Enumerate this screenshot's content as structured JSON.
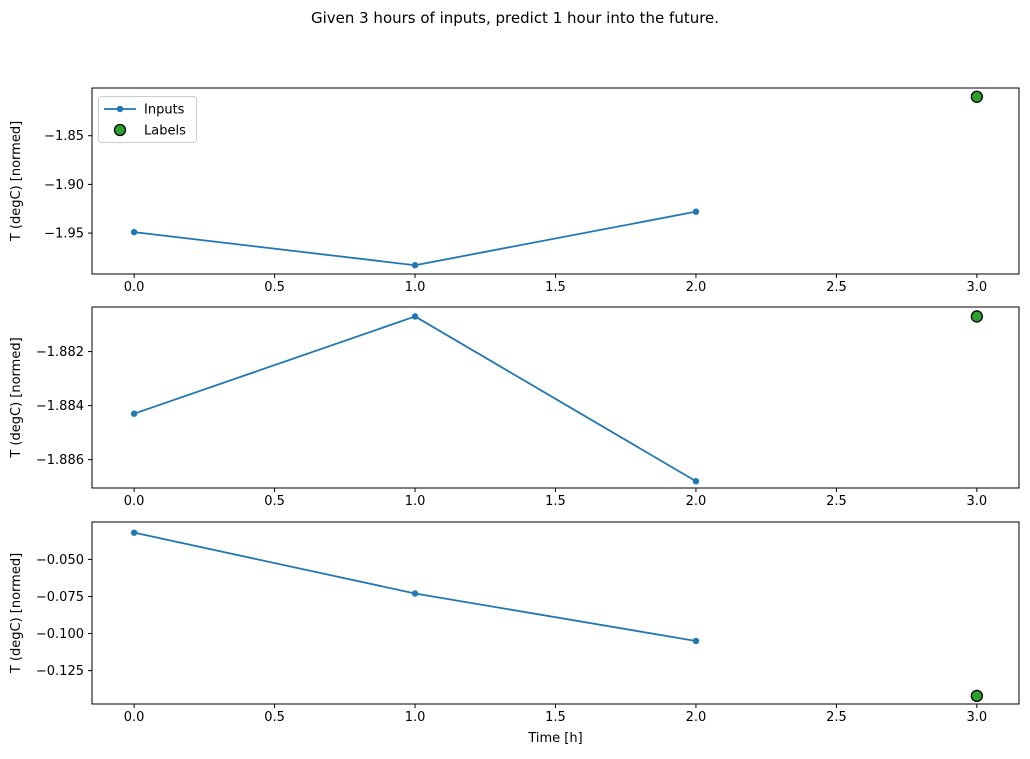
{
  "figure": {
    "title": "Given 3 hours of inputs, predict 1 hour into the future.",
    "xlabel": "Time [h]",
    "ylabel": "T (degC) [normed]"
  },
  "colors": {
    "inputs_line": "#1f77b4",
    "labels_fill": "#2ca02c",
    "labels_edge": "#000000",
    "axis": "#000000",
    "tick_text": "#000000",
    "legend_border": "#cccccc",
    "background": "#ffffff"
  },
  "legend": {
    "position": "upper-left",
    "items": [
      {
        "label": "Inputs",
        "marker": "line-dot",
        "color": "#1f77b4"
      },
      {
        "label": "Labels",
        "marker": "circle",
        "color": "#2ca02c"
      }
    ]
  },
  "chart_data": [
    {
      "type": "line",
      "title": "",
      "xlabel": "",
      "ylabel": "T (degC) [normed]",
      "xlim": [
        -0.15,
        3.15
      ],
      "ylim": [
        -1.992,
        -1.801
      ],
      "x_tick_values": [
        0.0,
        0.5,
        1.0,
        1.5,
        2.0,
        2.5,
        3.0
      ],
      "x_tick_labels": [
        "0.0",
        "0.5",
        "1.0",
        "1.5",
        "2.0",
        "2.5",
        "3.0"
      ],
      "y_tick_values": [
        -1.85,
        -1.9,
        -1.95
      ],
      "y_tick_labels": [
        "−1.85",
        "−1.90",
        "−1.95"
      ],
      "series": [
        {
          "name": "Inputs",
          "kind": "line+marker",
          "x": [
            0,
            1,
            2
          ],
          "y": [
            -1.949,
            -1.983,
            -1.928
          ]
        },
        {
          "name": "Labels",
          "kind": "scatter",
          "x": [
            3
          ],
          "y": [
            -1.81
          ]
        }
      ],
      "show_legend": true,
      "grid": false
    },
    {
      "type": "line",
      "title": "",
      "xlabel": "",
      "ylabel": "T (degC) [normed]",
      "xlim": [
        -0.15,
        3.15
      ],
      "ylim": [
        -1.88705,
        -1.88035
      ],
      "x_tick_values": [
        0.0,
        0.5,
        1.0,
        1.5,
        2.0,
        2.5,
        3.0
      ],
      "x_tick_labels": [
        "0.0",
        "0.5",
        "1.0",
        "1.5",
        "2.0",
        "2.5",
        "3.0"
      ],
      "y_tick_values": [
        -1.882,
        -1.884,
        -1.886
      ],
      "y_tick_labels": [
        "−1.882",
        "−1.884",
        "−1.886"
      ],
      "series": [
        {
          "name": "Inputs",
          "kind": "line+marker",
          "x": [
            0,
            1,
            2
          ],
          "y": [
            -1.8843,
            -1.8807,
            -1.8868
          ]
        },
        {
          "name": "Labels",
          "kind": "scatter",
          "x": [
            3
          ],
          "y": [
            -1.8807
          ]
        }
      ],
      "show_legend": false,
      "grid": false
    },
    {
      "type": "line",
      "title": "",
      "xlabel": "Time [h]",
      "ylabel": "T (degC) [normed]",
      "xlim": [
        -0.15,
        3.15
      ],
      "ylim": [
        -0.1475,
        -0.0248
      ],
      "x_tick_values": [
        0.0,
        0.5,
        1.0,
        1.5,
        2.0,
        2.5,
        3.0
      ],
      "x_tick_labels": [
        "0.0",
        "0.5",
        "1.0",
        "1.5",
        "2.0",
        "2.5",
        "3.0"
      ],
      "y_tick_values": [
        -0.05,
        -0.075,
        -0.1,
        -0.125
      ],
      "y_tick_labels": [
        "−0.050",
        "−0.075",
        "−0.100",
        "−0.125"
      ],
      "series": [
        {
          "name": "Inputs",
          "kind": "line+marker",
          "x": [
            0,
            1,
            2
          ],
          "y": [
            -0.032,
            -0.073,
            -0.105
          ]
        },
        {
          "name": "Labels",
          "kind": "scatter",
          "x": [
            3
          ],
          "y": [
            -0.142
          ]
        }
      ],
      "show_legend": false,
      "grid": false
    }
  ]
}
